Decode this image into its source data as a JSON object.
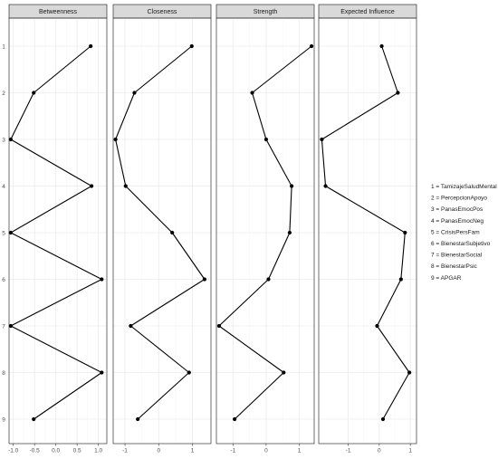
{
  "chart_data": {
    "type": "line",
    "y_categories": [
      "1",
      "2",
      "3",
      "4",
      "5",
      "6",
      "7",
      "8",
      "9"
    ],
    "panels": [
      {
        "title": "Betweenness",
        "xlim": [
          -1.1,
          1.2
        ],
        "xticks": [
          -1.0,
          -0.5,
          0.0,
          0.5,
          1.0
        ],
        "xtick_labels": [
          "-1.0",
          "-0.5",
          "0.0",
          "0.5",
          "1.0"
        ],
        "values": [
          0.82,
          -0.52,
          -1.06,
          0.84,
          -1.06,
          1.08,
          -1.06,
          1.08,
          -0.52
        ]
      },
      {
        "title": "Closeness",
        "xlim": [
          -1.35,
          1.55
        ],
        "xticks": [
          -1,
          0,
          1
        ],
        "xtick_labels": [
          "-1",
          "0",
          "1"
        ],
        "values": [
          0.98,
          -0.72,
          -1.28,
          -0.98,
          0.4,
          1.36,
          -0.83,
          0.9,
          -0.62
        ]
      },
      {
        "title": "Strength",
        "xlim": [
          -1.5,
          1.45
        ],
        "xticks": [
          -1,
          0,
          1
        ],
        "xtick_labels": [
          "-1",
          "0",
          "1"
        ],
        "values": [
          1.37,
          -0.42,
          0.0,
          0.77,
          0.71,
          0.07,
          -1.42,
          0.53,
          -0.95
        ]
      },
      {
        "title": "Expected Influence",
        "xlim": [
          -1.95,
          1.2
        ],
        "xticks": [
          -1,
          0,
          1
        ],
        "xtick_labels": [
          "-1",
          "0",
          "1"
        ],
        "values": [
          0.08,
          0.6,
          -1.85,
          -1.73,
          0.83,
          0.7,
          -0.07,
          0.97,
          0.12
        ]
      }
    ],
    "legend": {
      "placement": "right",
      "entries": [
        "1 = TamizajeSaludMental",
        "2 = PercepcionApoyo",
        "3 = PanasEmocPos",
        "4 = PanasEmocNeg",
        "5 = CrisisPersFam",
        "6 = BienestarSubjetivo",
        "7 = BienestarSocial",
        "8 = BienestarPsic",
        "9 = APGAR"
      ]
    },
    "grid": true
  },
  "colors": {
    "strip_bg": "#d9d9d9",
    "strip_border": "#333333",
    "panel_border": "#333333",
    "grid_major": "#ebebeb",
    "grid_minor": "#f4f4f4",
    "line": "#000000",
    "point": "#000000"
  }
}
